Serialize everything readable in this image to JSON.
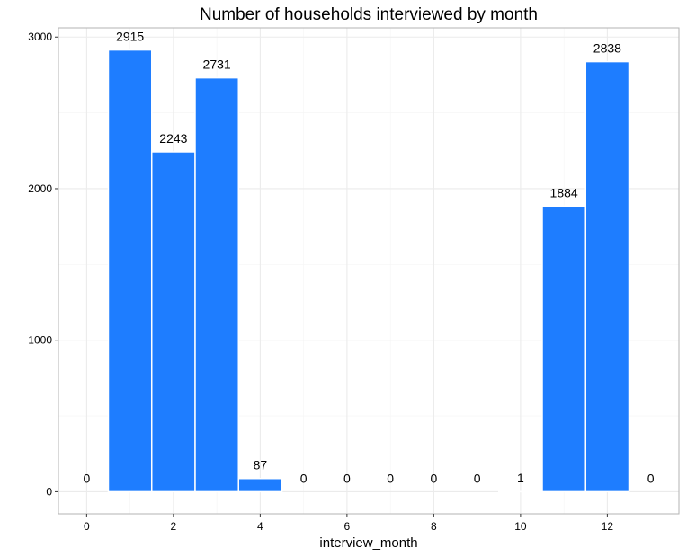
{
  "chart_data": {
    "type": "bar",
    "title": "Number of households interviewed by month",
    "xlabel": "interview_month",
    "ylabel": "",
    "x": [
      0,
      1,
      2,
      3,
      4,
      5,
      6,
      7,
      8,
      9,
      10,
      11,
      12,
      13
    ],
    "values": [
      0,
      2915,
      2243,
      2731,
      87,
      0,
      0,
      0,
      0,
      0,
      1,
      1884,
      2838,
      0
    ],
    "data_labels": [
      "0",
      "2915",
      "2243",
      "2731",
      "87",
      "0",
      "0",
      "0",
      "0",
      "0",
      "1",
      "1884",
      "2838",
      "0"
    ],
    "xlim": [
      -0.65,
      13.65
    ],
    "ylim": [
      -145.75,
      3060.75
    ],
    "x_ticks": [
      0,
      2,
      4,
      6,
      8,
      10,
      12
    ],
    "x_tick_labels": [
      "0",
      "2",
      "4",
      "6",
      "8",
      "10",
      "12"
    ],
    "y_ticks": [
      0,
      1000,
      2000,
      3000
    ],
    "y_tick_labels": [
      "0",
      "1000",
      "2000",
      "3000"
    ],
    "bar_width": 1,
    "grid": true,
    "legend": "none",
    "colors": {
      "bar_fill": "#1e7dff",
      "bar_outline": "#ffffff",
      "grid_major": "#ebebeb",
      "grid_minor": "#f5f5f5",
      "panel_border": "#b3b3b3",
      "axis_tick": "#333333",
      "text": "#000000"
    }
  }
}
